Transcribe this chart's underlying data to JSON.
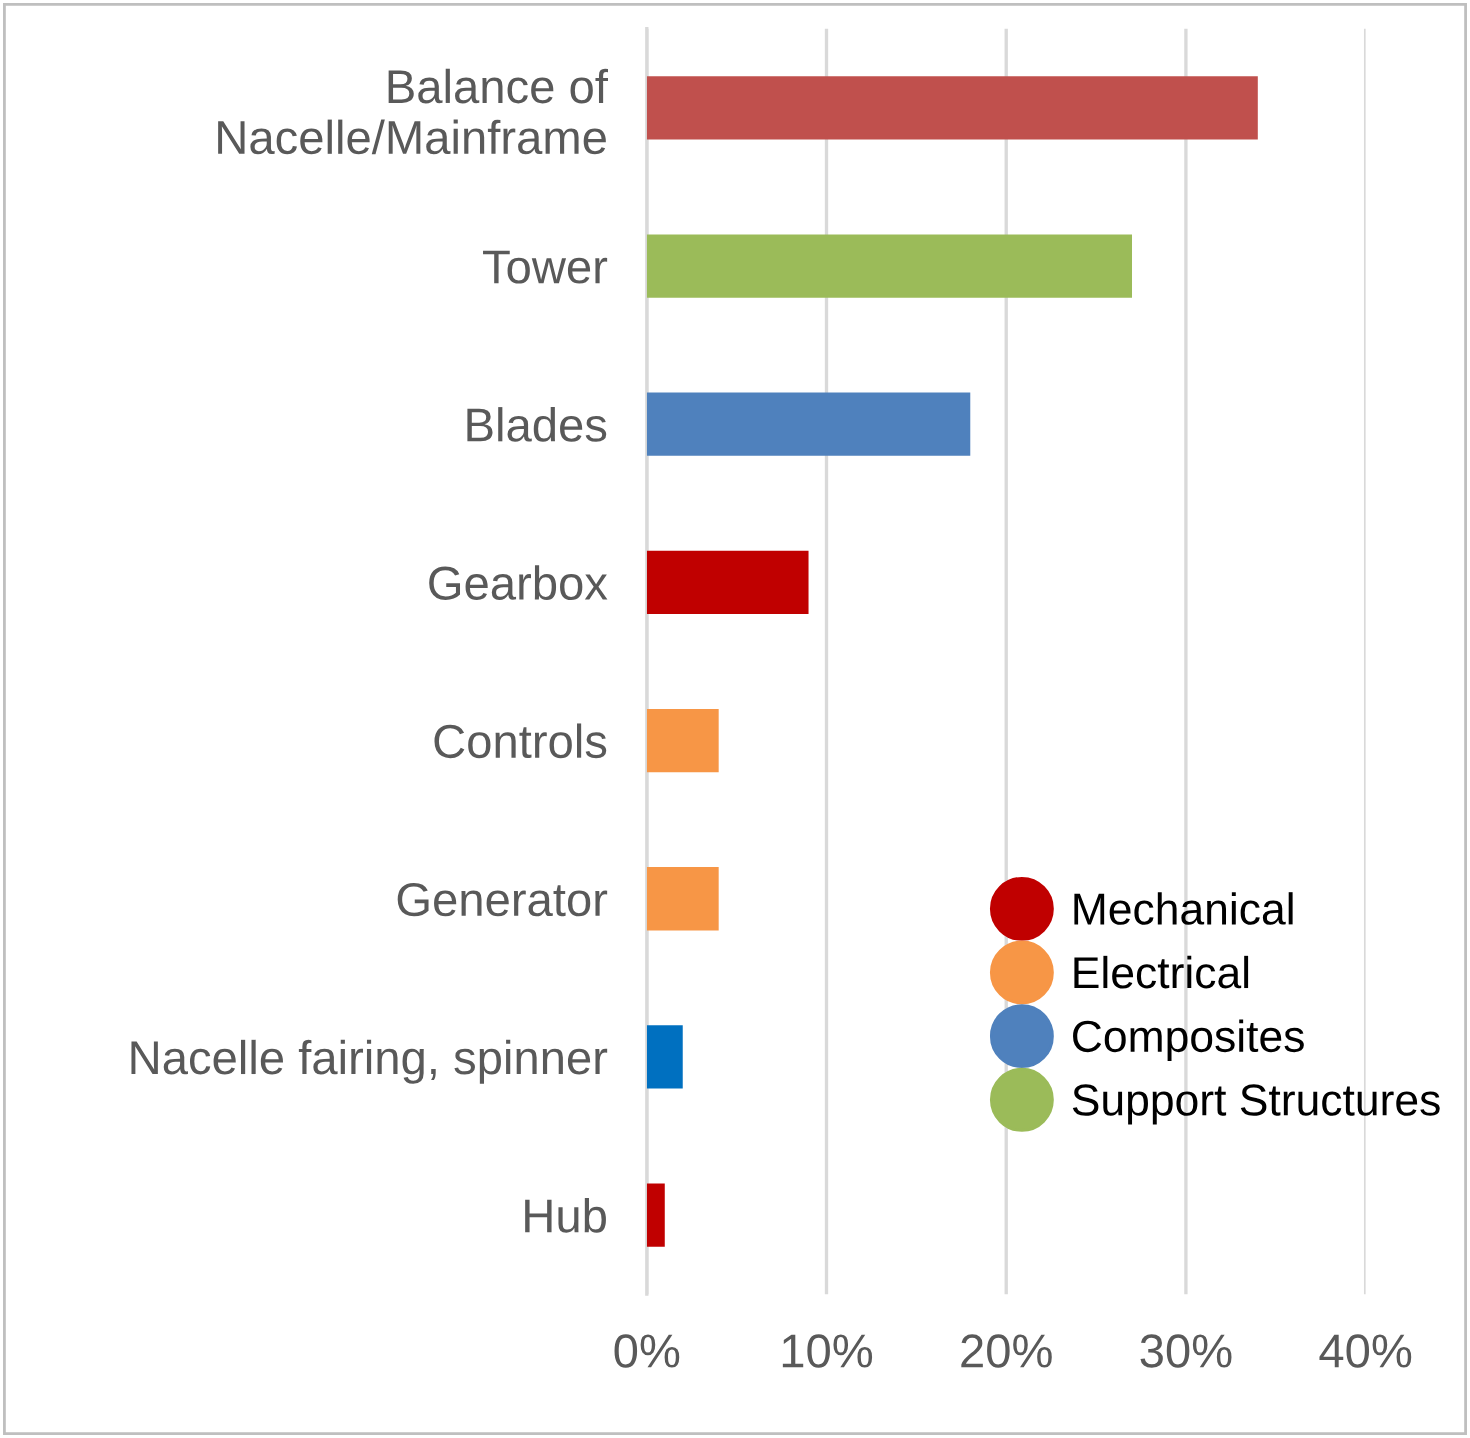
{
  "chart_data": {
    "type": "bar",
    "orientation": "horizontal",
    "categories": [
      "Balance of\nNacelle/Mainframe",
      "Tower",
      "Blades",
      "Gearbox",
      "Controls",
      "Generator",
      "Nacelle fairing, spinner",
      "Hub"
    ],
    "series": [
      {
        "name": "Mechanical",
        "color": "#c00000",
        "values": [
          34,
          null,
          null,
          9,
          null,
          null,
          null,
          1
        ],
        "colors": [
          "#c0504d",
          null,
          null,
          "#c00000",
          null,
          null,
          null,
          "#c00000"
        ]
      },
      {
        "name": "Electrical",
        "color": "#f79646",
        "values": [
          null,
          null,
          null,
          null,
          4,
          4,
          null,
          null
        ],
        "colors": [
          null,
          null,
          null,
          null,
          "#f79646",
          "#f79646",
          null,
          null
        ]
      },
      {
        "name": "Composites",
        "color": "#4f81bd",
        "values": [
          null,
          null,
          18,
          null,
          null,
          null,
          2,
          null
        ],
        "colors": [
          null,
          null,
          "#4f81bd",
          null,
          null,
          null,
          "#0070c0",
          null
        ]
      },
      {
        "name": "Support Structures",
        "color": "#9bbb59",
        "values": [
          null,
          27,
          null,
          null,
          null,
          null,
          null,
          null
        ],
        "colors": [
          null,
          "#9bbb59",
          null,
          null,
          null,
          null,
          null,
          null
        ]
      }
    ],
    "xlim": [
      0,
      40
    ],
    "xticks": [
      {
        "value": 0,
        "label": "0%"
      },
      {
        "value": 10,
        "label": "10%"
      },
      {
        "value": 20,
        "label": "20%"
      },
      {
        "value": 30,
        "label": "30%"
      },
      {
        "value": 40,
        "label": "40%"
      }
    ],
    "grid": "x",
    "legend": "lower right"
  }
}
